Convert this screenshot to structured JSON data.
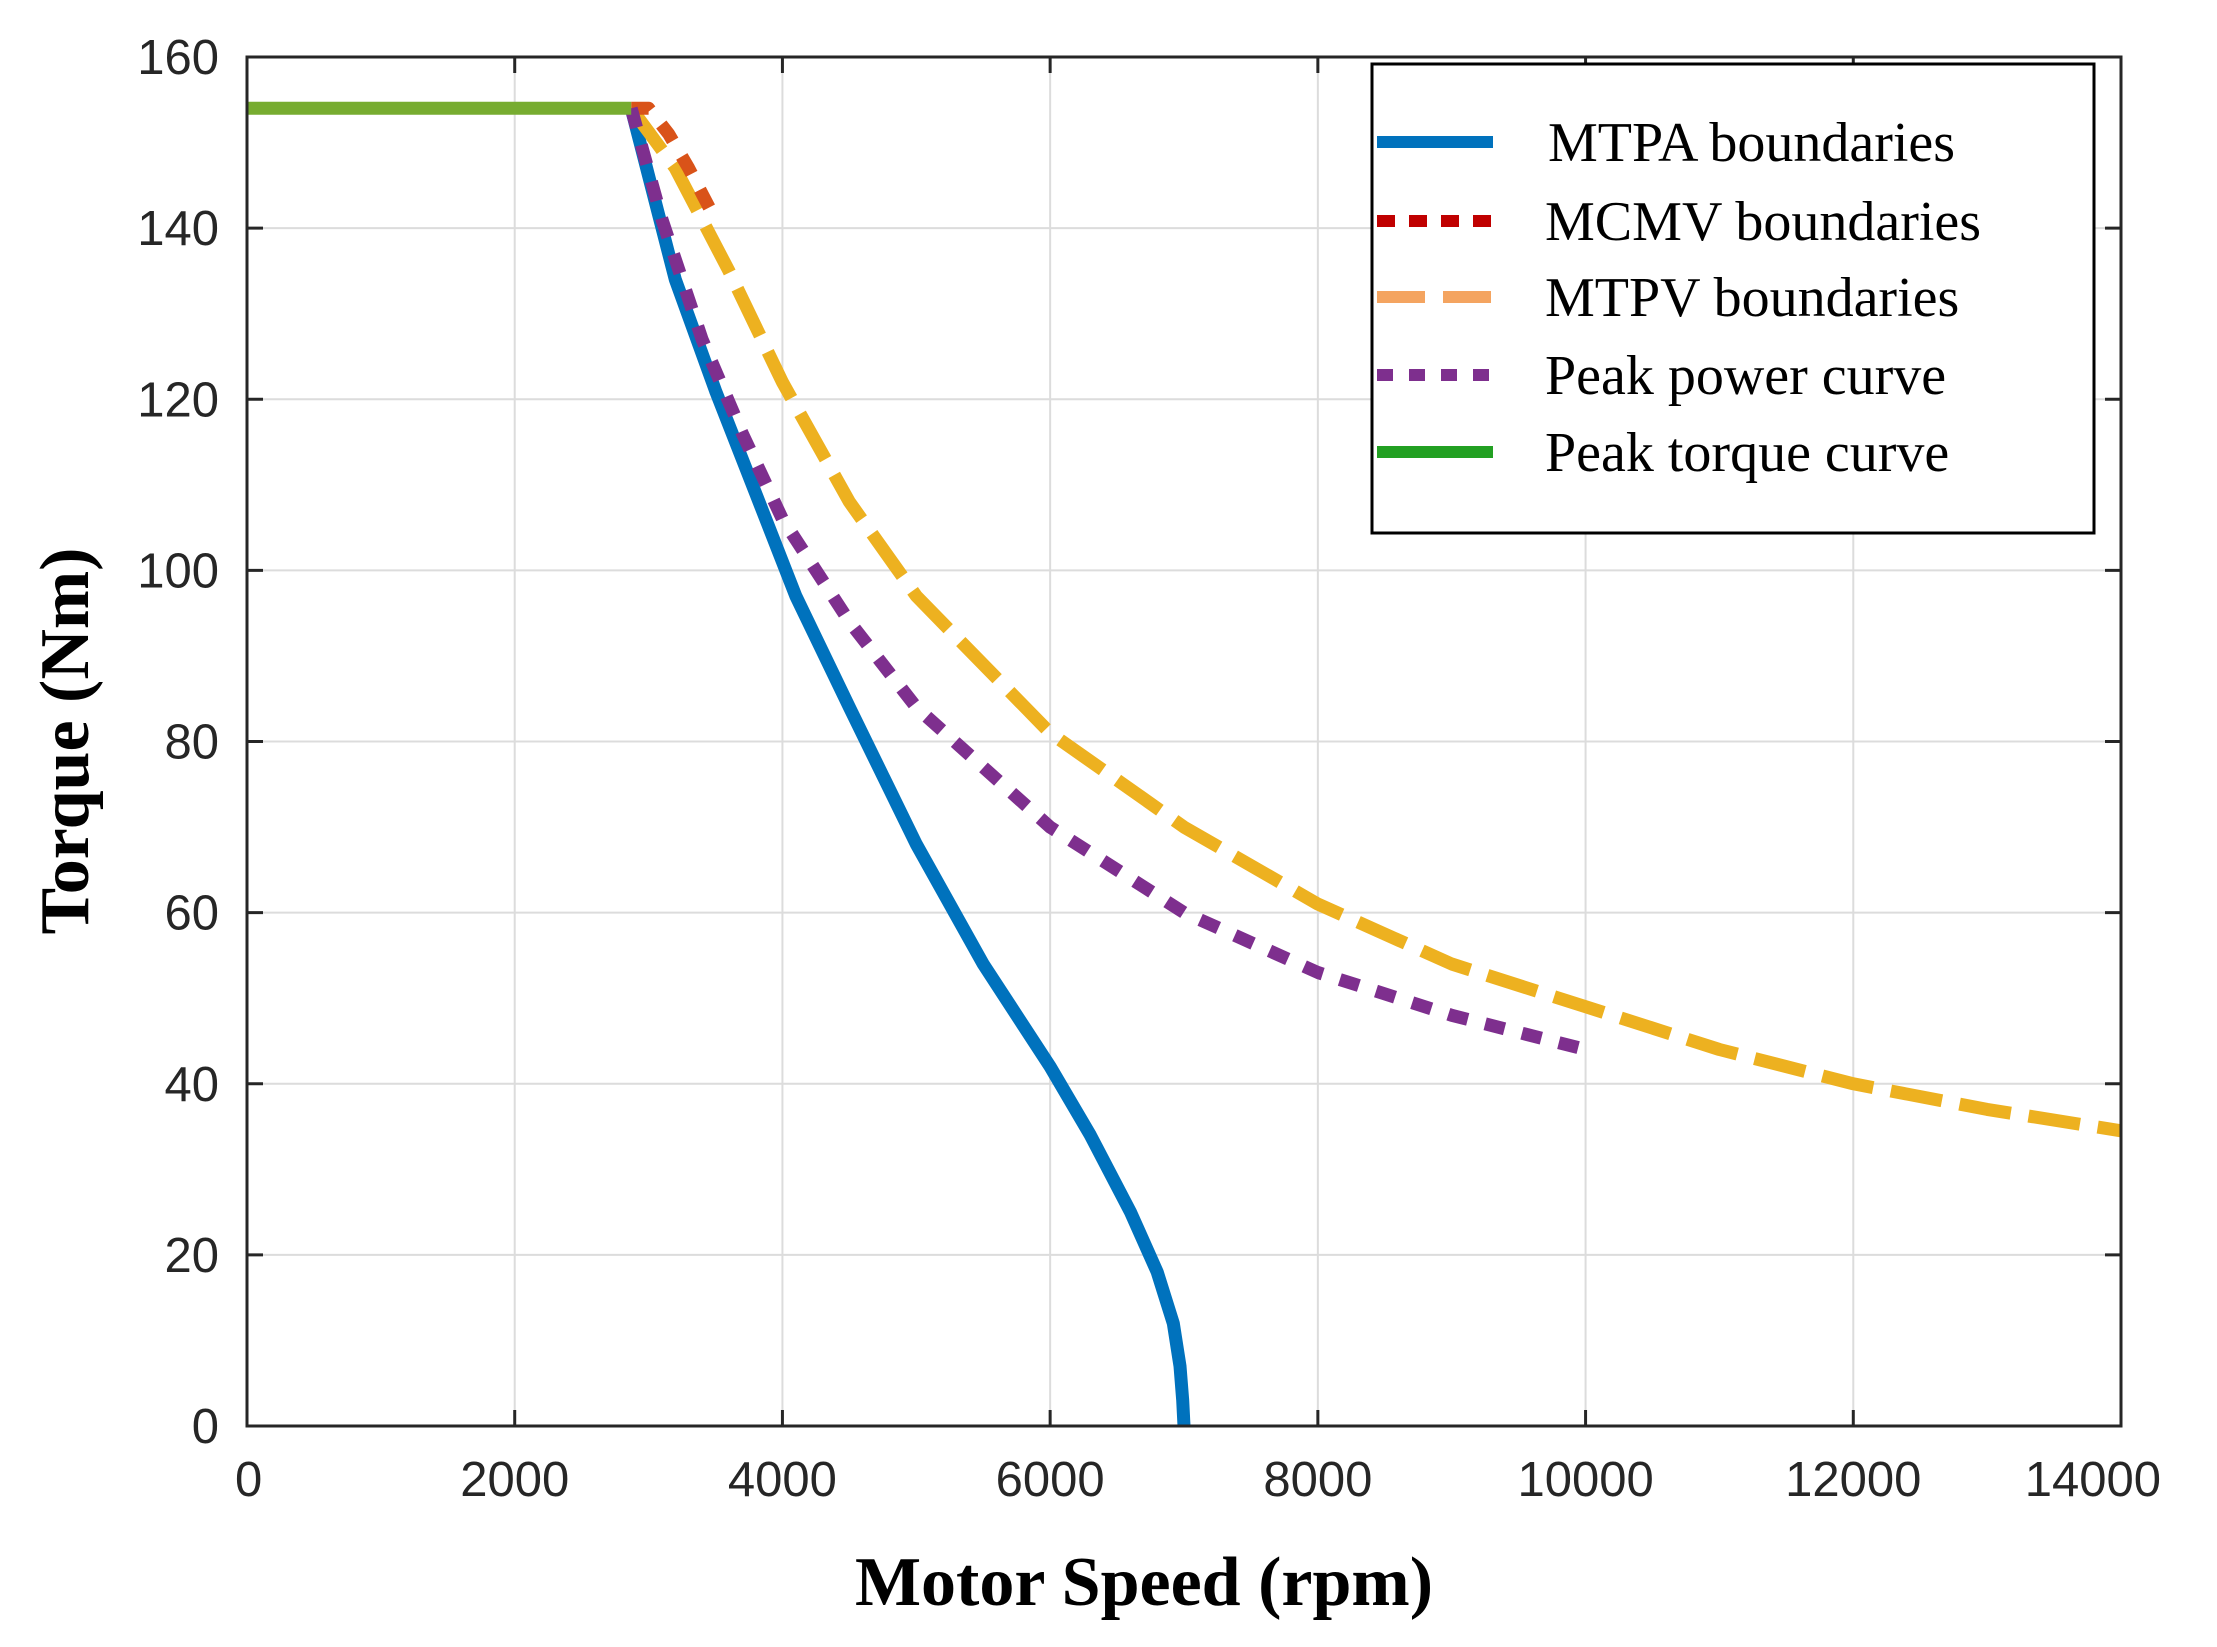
{
  "chart_data": {
    "type": "line",
    "xlabel": "Motor Speed (rpm)",
    "ylabel": "Torque (Nm)",
    "xlim": [
      0,
      14000
    ],
    "ylim": [
      0,
      160
    ],
    "xticks": [
      "0",
      "2000",
      "4000",
      "6000",
      "8000",
      "10000",
      "12000",
      "14000"
    ],
    "yticks": [
      "0",
      "20",
      "40",
      "60",
      "80",
      "100",
      "120",
      "140",
      "160"
    ],
    "grid": true,
    "legend_position": "top-right",
    "legend": [
      {
        "name": "MTPA boundaries",
        "color": "#0072BD",
        "style": "solid"
      },
      {
        "name": "MCMV boundaries",
        "color": "#C00000",
        "style": "dotted"
      },
      {
        "name": "MTPV boundaries",
        "color": "#F4A460",
        "style": "dashed"
      },
      {
        "name": "Peak power curve",
        "color": "#7E2F8E",
        "style": "dotted"
      },
      {
        "name": "Peak torque curve",
        "color": "#22A022",
        "style": "solid"
      }
    ],
    "series": [
      {
        "name": "MTPA boundaries",
        "color": "#0072BD",
        "style": "solid",
        "x": [
          2870,
          3200,
          3500,
          3800,
          4100,
          4500,
          5000,
          5500,
          6000,
          6300,
          6600,
          6800,
          6920,
          6970,
          6990,
          7000
        ],
        "y": [
          154,
          134,
          121,
          109,
          97,
          84,
          68,
          54,
          42,
          34,
          25,
          18,
          12,
          7,
          3,
          0
        ]
      },
      {
        "name": "MTPV boundaries",
        "color": "#EDB120",
        "style": "dashed",
        "x": [
          2870,
          3200,
          3600,
          4000,
          4500,
          5000,
          6000,
          7000,
          8000,
          9000,
          10000,
          11000,
          12000,
          13000,
          14000
        ],
        "y": [
          154,
          147,
          135,
          122,
          108,
          97,
          81,
          70,
          61,
          54,
          49,
          44,
          40,
          37,
          34.5
        ]
      },
      {
        "name": "MCMV boundaries",
        "color": "#D95319",
        "style": "dotted",
        "x": [
          2870,
          3000,
          3150,
          3300,
          3500
        ],
        "y": [
          154,
          154,
          151,
          147,
          141
        ]
      },
      {
        "name": "Peak power curve",
        "color": "#7E2F8E",
        "style": "dotted",
        "x": [
          2870,
          3100,
          3400,
          3700,
          4000,
          4500,
          5000,
          6000,
          7000,
          8000,
          9000,
          10000
        ],
        "y": [
          154,
          141,
          127,
          116,
          106,
          94,
          84,
          70,
          60,
          53,
          48,
          44
        ]
      },
      {
        "name": "Peak torque curve",
        "color": "#77AC30",
        "style": "solid",
        "x": [
          0,
          2870
        ],
        "y": [
          154,
          154
        ]
      }
    ]
  }
}
